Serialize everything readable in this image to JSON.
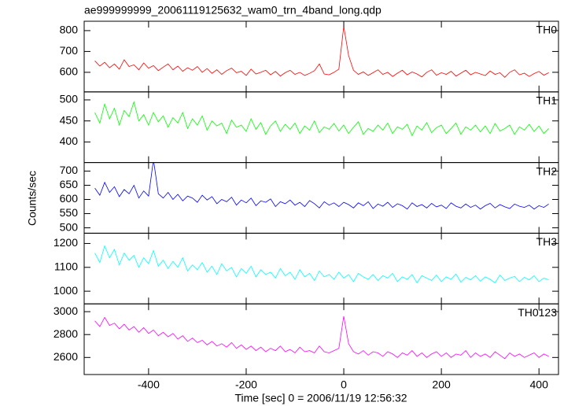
{
  "title": "ae999999999_20061119125632_wam0_trn_4band_long.qdp",
  "xlabel": "Time [sec] 0 = 2006/11/19 12:56:32",
  "ylabel": "Counts/sec",
  "chart_data": [
    {
      "type": "line",
      "label": "TH0",
      "color": "#ff0000",
      "x": [
        -510,
        -500,
        -490,
        -480,
        -470,
        -460,
        -450,
        -440,
        -430,
        -420,
        -410,
        -400,
        -390,
        -380,
        -370,
        -360,
        -350,
        -340,
        -330,
        -320,
        -310,
        -300,
        -290,
        -280,
        -270,
        -260,
        -250,
        -240,
        -230,
        -220,
        -210,
        -200,
        -190,
        -180,
        -170,
        -160,
        -150,
        -140,
        -130,
        -120,
        -110,
        -100,
        -90,
        -80,
        -70,
        -60,
        -50,
        -40,
        -30,
        -20,
        -10,
        0,
        10,
        20,
        30,
        40,
        50,
        60,
        70,
        80,
        90,
        100,
        110,
        120,
        130,
        140,
        150,
        160,
        170,
        180,
        190,
        200,
        210,
        220,
        230,
        240,
        250,
        260,
        270,
        280,
        290,
        300,
        310,
        320,
        330,
        340,
        350,
        360,
        370,
        380,
        390,
        400,
        410,
        420
      ],
      "values": [
        655,
        630,
        648,
        622,
        640,
        615,
        660,
        628,
        636,
        612,
        645,
        620,
        632,
        608,
        625,
        640,
        612,
        630,
        605,
        622,
        610,
        628,
        600,
        618,
        595,
        612,
        590,
        608,
        620,
        598,
        605,
        585,
        615,
        592,
        600,
        610,
        588,
        604,
        582,
        598,
        610,
        590,
        600,
        585,
        595,
        608,
        640,
        592,
        588,
        600,
        615,
        820,
        680,
        610,
        590,
        602,
        585,
        598,
        612,
        590,
        600,
        580,
        596,
        610,
        588,
        602,
        592,
        578,
        600,
        612,
        586,
        598,
        590,
        605,
        582,
        596,
        610,
        588,
        600,
        592,
        584,
        606,
        590,
        598,
        576,
        600,
        612,
        588,
        596,
        580,
        594,
        604,
        586,
        598
      ],
      "xlim": [
        -532,
        440
      ],
      "xticks": [
        -400,
        -200,
        0,
        200,
        400
      ],
      "ylim": [
        506,
        845
      ],
      "yticks": [
        600,
        700,
        800
      ]
    },
    {
      "type": "line",
      "label": "TH1",
      "color": "#00ff00",
      "x": [
        -510,
        -500,
        -490,
        -480,
        -470,
        -460,
        -450,
        -440,
        -430,
        -420,
        -410,
        -400,
        -390,
        -380,
        -370,
        -360,
        -350,
        -340,
        -330,
        -320,
        -310,
        -300,
        -290,
        -280,
        -270,
        -260,
        -250,
        -240,
        -230,
        -220,
        -210,
        -200,
        -190,
        -180,
        -170,
        -160,
        -150,
        -140,
        -130,
        -120,
        -110,
        -100,
        -90,
        -80,
        -70,
        -60,
        -50,
        -40,
        -30,
        -20,
        -10,
        0,
        10,
        20,
        30,
        40,
        50,
        60,
        70,
        80,
        90,
        100,
        110,
        120,
        130,
        140,
        150,
        160,
        170,
        180,
        190,
        200,
        210,
        220,
        230,
        240,
        250,
        260,
        270,
        280,
        290,
        300,
        310,
        320,
        330,
        340,
        350,
        360,
        370,
        380,
        390,
        400,
        410,
        420
      ],
      "values": [
        470,
        445,
        490,
        455,
        480,
        440,
        475,
        460,
        495,
        450,
        465,
        440,
        470,
        448,
        462,
        435,
        458,
        445,
        470,
        432,
        455,
        440,
        462,
        428,
        450,
        438,
        445,
        420,
        452,
        435,
        440,
        425,
        455,
        430,
        446,
        418,
        438,
        450,
        425,
        442,
        430,
        445,
        420,
        438,
        428,
        450,
        422,
        436,
        430,
        444,
        426,
        440,
        420,
        435,
        448,
        418,
        432,
        425,
        440,
        428,
        445,
        420,
        436,
        430,
        442,
        415,
        438,
        428,
        446,
        422,
        434,
        440,
        420,
        432,
        445,
        418,
        436,
        428,
        440,
        424,
        438,
        420,
        444,
        426,
        432,
        440,
        418,
        436,
        428,
        442,
        425,
        438,
        420,
        432
      ],
      "xlim": [
        -532,
        440
      ],
      "xticks": [
        -400,
        -200,
        0,
        200,
        400
      ],
      "ylim": [
        351,
        519
      ],
      "yticks": [
        400,
        450,
        500
      ]
    },
    {
      "type": "line",
      "label": "TH2",
      "color": "#0000ff",
      "x": [
        -510,
        -500,
        -490,
        -480,
        -470,
        -460,
        -450,
        -440,
        -430,
        -420,
        -410,
        -400,
        -390,
        -380,
        -370,
        -360,
        -350,
        -340,
        -330,
        -320,
        -310,
        -300,
        -290,
        -280,
        -270,
        -260,
        -250,
        -240,
        -230,
        -220,
        -210,
        -200,
        -190,
        -180,
        -170,
        -160,
        -150,
        -140,
        -130,
        -120,
        -110,
        -100,
        -90,
        -80,
        -70,
        -60,
        -50,
        -40,
        -30,
        -20,
        -10,
        0,
        10,
        20,
        30,
        40,
        50,
        60,
        70,
        80,
        90,
        100,
        110,
        120,
        130,
        140,
        150,
        160,
        170,
        180,
        190,
        200,
        210,
        220,
        230,
        240,
        250,
        260,
        270,
        280,
        290,
        300,
        310,
        320,
        330,
        340,
        350,
        360,
        370,
        380,
        390,
        400,
        410,
        420
      ],
      "values": [
        640,
        615,
        660,
        625,
        645,
        610,
        635,
        620,
        650,
        605,
        630,
        612,
        740,
        620,
        605,
        625,
        600,
        618,
        595,
        612,
        605,
        590,
        615,
        598,
        610,
        585,
        600,
        592,
        608,
        580,
        598,
        588,
        605,
        578,
        595,
        590,
        602,
        575,
        592,
        585,
        598,
        580,
        590,
        575,
        596,
        585,
        570,
        592,
        580,
        588,
        575,
        590,
        582,
        570,
        588,
        578,
        592,
        568,
        584,
        576,
        590,
        572,
        585,
        578,
        566,
        588,
        575,
        582,
        570,
        586,
        574,
        580,
        568,
        588,
        576,
        570,
        584,
        572,
        580,
        566,
        578,
        586,
        570,
        582,
        574,
        568,
        584,
        576,
        572,
        580,
        566,
        578,
        572,
        584
      ],
      "xlim": [
        -532,
        440
      ],
      "xticks": [
        -400,
        -200,
        0,
        200,
        400
      ],
      "ylim": [
        481,
        730
      ],
      "yticks": [
        500,
        550,
        600,
        650,
        700
      ]
    },
    {
      "type": "line",
      "label": "TH3",
      "color": "#00ffff",
      "x": [
        -510,
        -500,
        -490,
        -480,
        -470,
        -460,
        -450,
        -440,
        -430,
        -420,
        -410,
        -400,
        -390,
        -380,
        -370,
        -360,
        -350,
        -340,
        -330,
        -320,
        -310,
        -300,
        -290,
        -280,
        -270,
        -260,
        -250,
        -240,
        -230,
        -220,
        -210,
        -200,
        -190,
        -180,
        -170,
        -160,
        -150,
        -140,
        -130,
        -120,
        -110,
        -100,
        -90,
        -80,
        -70,
        -60,
        -50,
        -40,
        -30,
        -20,
        -10,
        0,
        10,
        20,
        30,
        40,
        50,
        60,
        70,
        80,
        90,
        100,
        110,
        120,
        130,
        140,
        150,
        160,
        170,
        180,
        190,
        200,
        210,
        220,
        230,
        240,
        250,
        260,
        270,
        280,
        290,
        300,
        310,
        320,
        330,
        340,
        350,
        360,
        370,
        380,
        390,
        400,
        410,
        420
      ],
      "values": [
        1160,
        1120,
        1190,
        1140,
        1175,
        1110,
        1160,
        1130,
        1150,
        1100,
        1140,
        1115,
        1170,
        1105,
        1130,
        1095,
        1125,
        1100,
        1140,
        1085,
        1110,
        1090,
        1120,
        1080,
        1105,
        1070,
        1115,
        1085,
        1100,
        1060,
        1095,
        1075,
        1105,
        1060,
        1090,
        1070,
        1080,
        1055,
        1095,
        1065,
        1080,
        1050,
        1090,
        1060,
        1075,
        1045,
        1085,
        1060,
        1070,
        1050,
        1080,
        1055,
        1070,
        1040,
        1075,
        1060,
        1050,
        1070,
        1045,
        1065,
        1055,
        1075,
        1040,
        1060,
        1050,
        1070,
        1035,
        1065,
        1055,
        1045,
        1068,
        1040,
        1060,
        1050,
        1072,
        1038,
        1058,
        1048,
        1065,
        1042,
        1060,
        1050,
        1035,
        1068,
        1045,
        1055,
        1062,
        1040,
        1058,
        1048,
        1065,
        1040,
        1055,
        1048
      ],
      "xlim": [
        -532,
        440
      ],
      "xticks": [
        -400,
        -200,
        0,
        200,
        400
      ],
      "ylim": [
        947,
        1243
      ],
      "yticks": [
        1000,
        1100,
        1200
      ]
    },
    {
      "type": "line",
      "label": "TH0123",
      "color": "#ff00ff",
      "x": [
        -510,
        -500,
        -490,
        -480,
        -470,
        -460,
        -450,
        -440,
        -430,
        -420,
        -410,
        -400,
        -390,
        -380,
        -370,
        -360,
        -350,
        -340,
        -330,
        -320,
        -310,
        -300,
        -290,
        -280,
        -270,
        -260,
        -250,
        -240,
        -230,
        -220,
        -210,
        -200,
        -190,
        -180,
        -170,
        -160,
        -150,
        -140,
        -130,
        -120,
        -110,
        -100,
        -90,
        -80,
        -70,
        -60,
        -50,
        -40,
        -30,
        -20,
        -10,
        0,
        10,
        20,
        30,
        40,
        50,
        60,
        70,
        80,
        90,
        100,
        110,
        120,
        130,
        140,
        150,
        160,
        170,
        180,
        190,
        200,
        210,
        220,
        230,
        240,
        250,
        260,
        270,
        280,
        290,
        300,
        310,
        320,
        330,
        340,
        350,
        360,
        370,
        380,
        390,
        400,
        410,
        420
      ],
      "values": [
        2920,
        2870,
        2950,
        2880,
        2900,
        2850,
        2890,
        2840,
        2870,
        2820,
        2860,
        2810,
        2840,
        2790,
        2820,
        2780,
        2810,
        2760,
        2790,
        2740,
        2770,
        2730,
        2750,
        2710,
        2740,
        2700,
        2720,
        2690,
        2730,
        2680,
        2710,
        2670,
        2700,
        2660,
        2690,
        2650,
        2680,
        2660,
        2700,
        2650,
        2670,
        2640,
        2690,
        2650,
        2660,
        2640,
        2700,
        2650,
        2640,
        2660,
        2680,
        2960,
        2720,
        2650,
        2630,
        2660,
        2620,
        2650,
        2640,
        2610,
        2650,
        2630,
        2600,
        2640,
        2620,
        2660,
        2610,
        2640,
        2600,
        2630,
        2650,
        2610,
        2640,
        2600,
        2630,
        2620,
        2660,
        2600,
        2640,
        2610,
        2630,
        2600,
        2650,
        2620,
        2590,
        2640,
        2610,
        2630,
        2600,
        2620,
        2640,
        2600,
        2630,
        2610
      ],
      "xlim": [
        -532,
        440
      ],
      "xticks": [
        -400,
        -200,
        0,
        200,
        400
      ],
      "ylim": [
        2451,
        3068
      ],
      "yticks": [
        2600,
        2800,
        3000
      ]
    }
  ]
}
